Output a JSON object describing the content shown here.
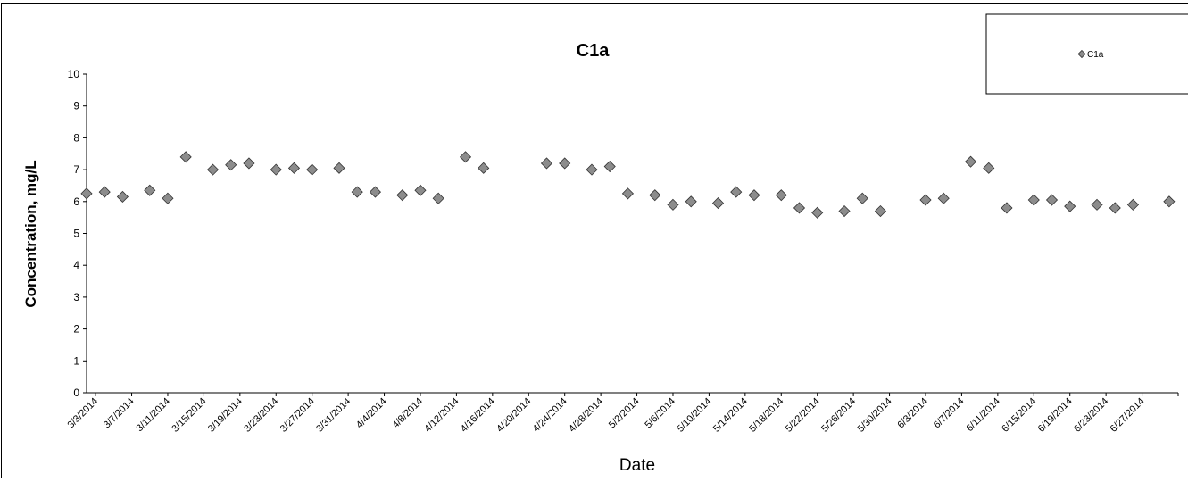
{
  "chart_data": {
    "type": "scatter",
    "title": "C1a",
    "xlabel": "Date",
    "ylabel": "Concentration, mg/L",
    "ylim": [
      0,
      10
    ],
    "yticks": [
      "0",
      "1",
      "2",
      "3",
      "4",
      "5",
      "6",
      "7",
      "8",
      "9",
      "10"
    ],
    "xlim": [
      "3/2/2014",
      "7/1/2014"
    ],
    "xtick_labels": [
      "3/3/2014",
      "3/7/2014",
      "3/11/2014",
      "3/15/2014",
      "3/19/2014",
      "3/23/2014",
      "3/27/2014",
      "3/31/2014",
      "4/4/2014",
      "4/8/2014",
      "4/12/2014",
      "4/16/2014",
      "4/20/2014",
      "4/24/2014",
      "4/28/2014",
      "5/2/2014",
      "5/6/2014",
      "5/10/2014",
      "5/14/2014",
      "5/18/2014",
      "5/22/2014",
      "5/26/2014",
      "5/30/2014",
      "6/3/2014",
      "6/7/2014",
      "6/11/2014",
      "6/15/2014",
      "6/19/2014",
      "6/23/2014",
      "6/27/2014"
    ],
    "grid": false,
    "legend_position": "top-right",
    "series": [
      {
        "name": "C1a",
        "marker": "diamond",
        "color": "#8c8c8c",
        "points": [
          {
            "x": "3/2/2014",
            "y": 6.25
          },
          {
            "x": "3/4/2014",
            "y": 6.3
          },
          {
            "x": "3/6/2014",
            "y": 6.15
          },
          {
            "x": "3/9/2014",
            "y": 6.35
          },
          {
            "x": "3/11/2014",
            "y": 6.1
          },
          {
            "x": "3/13/2014",
            "y": 7.4
          },
          {
            "x": "3/16/2014",
            "y": 7.0
          },
          {
            "x": "3/18/2014",
            "y": 7.15
          },
          {
            "x": "3/20/2014",
            "y": 7.2
          },
          {
            "x": "3/23/2014",
            "y": 7.0
          },
          {
            "x": "3/25/2014",
            "y": 7.05
          },
          {
            "x": "3/27/2014",
            "y": 7.0
          },
          {
            "x": "3/30/2014",
            "y": 7.05
          },
          {
            "x": "4/1/2014",
            "y": 6.3
          },
          {
            "x": "4/3/2014",
            "y": 6.3
          },
          {
            "x": "4/6/2014",
            "y": 6.2
          },
          {
            "x": "4/8/2014",
            "y": 6.35
          },
          {
            "x": "4/10/2014",
            "y": 6.1
          },
          {
            "x": "4/13/2014",
            "y": 7.4
          },
          {
            "x": "4/15/2014",
            "y": 7.05
          },
          {
            "x": "4/22/2014",
            "y": 7.2
          },
          {
            "x": "4/24/2014",
            "y": 7.2
          },
          {
            "x": "4/27/2014",
            "y": 7.0
          },
          {
            "x": "4/29/2014",
            "y": 7.1
          },
          {
            "x": "5/1/2014",
            "y": 6.25
          },
          {
            "x": "5/4/2014",
            "y": 6.2
          },
          {
            "x": "5/6/2014",
            "y": 5.9
          },
          {
            "x": "5/8/2014",
            "y": 6.0
          },
          {
            "x": "5/11/2014",
            "y": 5.95
          },
          {
            "x": "5/13/2014",
            "y": 6.3
          },
          {
            "x": "5/15/2014",
            "y": 6.2
          },
          {
            "x": "5/18/2014",
            "y": 6.2
          },
          {
            "x": "5/20/2014",
            "y": 5.8
          },
          {
            "x": "5/22/2014",
            "y": 5.65
          },
          {
            "x": "5/25/2014",
            "y": 5.7
          },
          {
            "x": "5/27/2014",
            "y": 6.1
          },
          {
            "x": "5/29/2014",
            "y": 5.7
          },
          {
            "x": "6/3/2014",
            "y": 6.05
          },
          {
            "x": "6/5/2014",
            "y": 6.1
          },
          {
            "x": "6/8/2014",
            "y": 7.25
          },
          {
            "x": "6/10/2014",
            "y": 7.05
          },
          {
            "x": "6/12/2014",
            "y": 5.8
          },
          {
            "x": "6/15/2014",
            "y": 6.05
          },
          {
            "x": "6/17/2014",
            "y": 6.05
          },
          {
            "x": "6/19/2014",
            "y": 5.85
          },
          {
            "x": "6/22/2014",
            "y": 5.9
          },
          {
            "x": "6/24/2014",
            "y": 5.8
          },
          {
            "x": "6/26/2014",
            "y": 5.9
          },
          {
            "x": "6/30/2014",
            "y": 6.0
          }
        ]
      }
    ]
  }
}
